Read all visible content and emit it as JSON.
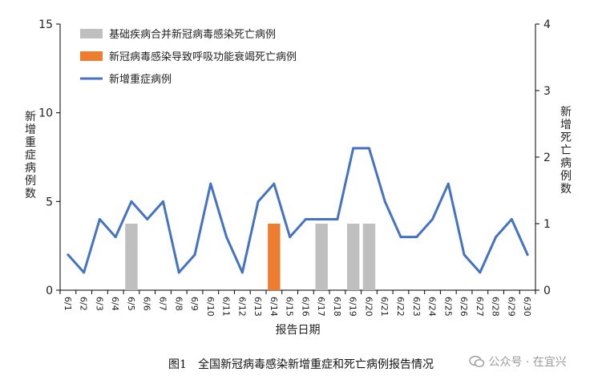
{
  "chart_data": {
    "type": "bar+line",
    "caption": "图1　全国新冠病毒感染新增重症和死亡病例报告情况",
    "xlabel": "报告日期",
    "ylabel_left": "新增重症病例数",
    "ylabel_right": "新增死亡病例数",
    "ylim_left": [
      0,
      15
    ],
    "ylim_right": [
      0,
      4
    ],
    "yticks_left": [
      "0",
      "5",
      "10",
      "15"
    ],
    "yticks_right": [
      "0",
      "1",
      "2",
      "3",
      "4"
    ],
    "categories": [
      "6/1",
      "6/2",
      "6/3",
      "6/4",
      "6/5",
      "6/6",
      "6/7",
      "6/8",
      "6/9",
      "6/10",
      "6/11",
      "6/12",
      "6/13",
      "6/14",
      "6/15",
      "6/16",
      "6/17",
      "6/18",
      "6/19",
      "6/20",
      "6/21",
      "6/22",
      "6/23",
      "6/24",
      "6/25",
      "6/26",
      "6/27",
      "6/28",
      "6/29",
      "6/30"
    ],
    "legend_placement": "top-left",
    "series": [
      {
        "name": "基础疾病合并新冠病毒感染死亡病例",
        "kind": "bar",
        "axis": "right",
        "color": "#bfbfbf",
        "values": [
          0,
          0,
          0,
          0,
          1,
          0,
          0,
          0,
          0,
          0,
          0,
          0,
          0,
          0,
          0,
          0,
          1,
          0,
          1,
          1,
          0,
          0,
          0,
          0,
          0,
          0,
          0,
          0,
          0,
          0
        ]
      },
      {
        "name": "新冠病毒感染导致呼吸功能衰竭死亡病例",
        "kind": "bar",
        "axis": "right",
        "color": "#ed7d31",
        "values": [
          0,
          0,
          0,
          0,
          0,
          0,
          0,
          0,
          0,
          0,
          0,
          0,
          0,
          1,
          0,
          0,
          0,
          0,
          0,
          0,
          0,
          0,
          0,
          0,
          0,
          0,
          0,
          0,
          0,
          0
        ]
      },
      {
        "name": "新增重症病例",
        "kind": "line",
        "axis": "left",
        "color": "#4472c4",
        "values": [
          2,
          1,
          4,
          3,
          5,
          4,
          5,
          1,
          2,
          6,
          3,
          1,
          5,
          6,
          3,
          4,
          4,
          4,
          8,
          8,
          5,
          3,
          3,
          4,
          6,
          2,
          1,
          3,
          4,
          2
        ]
      }
    ]
  },
  "watermark": {
    "text": "公众号 · 在宜兴",
    "icon": "wechat-icon"
  }
}
